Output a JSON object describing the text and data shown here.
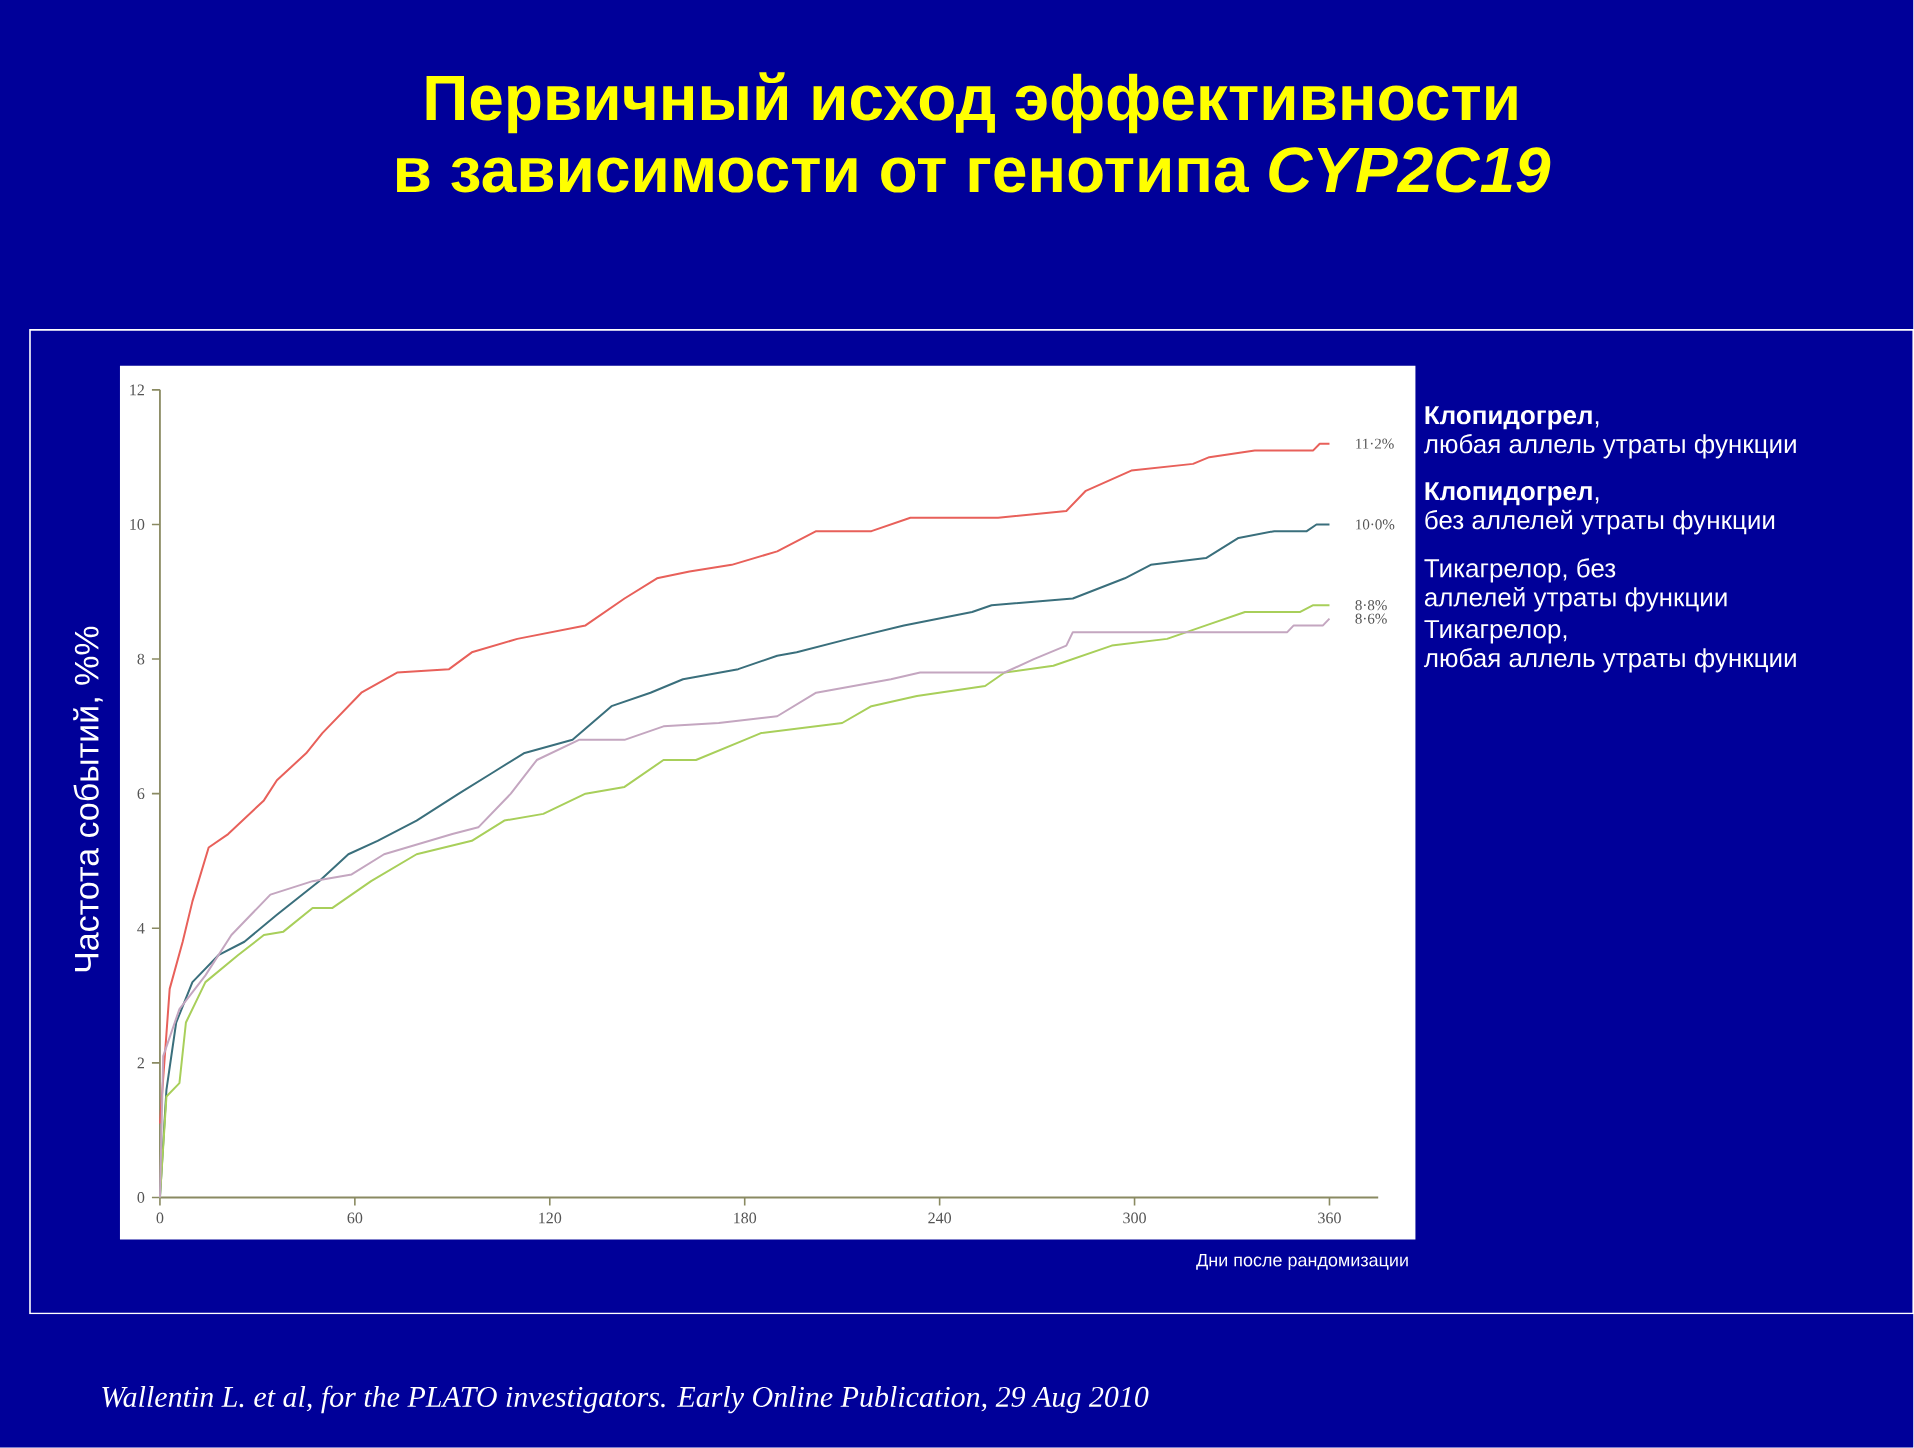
{
  "chart_data": {
    "type": "line",
    "title": "Первичный исход эффективности в зависимости от генотипа *CYP2C19*",
    "xlabel": "Дни после рандомизации",
    "ylabel": "Частота событий, %%",
    "xlim": [
      0,
      375
    ],
    "ylim": [
      0,
      12
    ],
    "xticks": [
      0,
      60,
      120,
      180,
      240,
      300,
      360
    ],
    "yticks": [
      0,
      2,
      4,
      6,
      8,
      10,
      12
    ],
    "marker": "none",
    "series": [
      {
        "name": "**Клопидогрел**, любая аллель утраты функции",
        "color": "#e8605a",
        "x": [
          0,
          3,
          7,
          10,
          15,
          21,
          32,
          36,
          45,
          50,
          56,
          62,
          73,
          89,
          96,
          110,
          131,
          143,
          153,
          163,
          176,
          190,
          194,
          202,
          219,
          231,
          258,
          279,
          285,
          299,
          318,
          323,
          337,
          355,
          357,
          360
        ],
        "values": [
          1.1,
          3.1,
          3.8,
          4.4,
          5.2,
          5.4,
          5.9,
          6.2,
          6.6,
          6.9,
          7.2,
          7.5,
          7.8,
          7.85,
          8.1,
          8.3,
          8.5,
          8.9,
          9.2,
          9.3,
          9.4,
          9.6,
          9.7,
          9.9,
          9.9,
          10.1,
          10.1,
          10.2,
          10.5,
          10.8,
          10.9,
          11.0,
          11.1,
          11.1,
          11.2,
          11.2
        ]
      },
      {
        "name": "**Клопидогрел**, без аллелей утраты функции",
        "color": "#3a6f7c",
        "x": [
          0,
          2,
          5,
          10,
          18,
          26,
          36,
          49,
          58,
          67,
          79,
          92,
          102,
          112,
          127,
          139,
          151,
          161,
          178,
          190,
          196,
          212,
          229,
          250,
          256,
          281,
          297,
          305,
          322,
          332,
          343,
          353,
          356,
          360
        ],
        "values": [
          0,
          1.6,
          2.6,
          3.2,
          3.6,
          3.8,
          4.2,
          4.7,
          5.1,
          5.3,
          5.6,
          6.0,
          6.3,
          6.6,
          6.8,
          7.3,
          7.5,
          7.7,
          7.85,
          8.05,
          8.1,
          8.3,
          8.5,
          8.7,
          8.8,
          8.9,
          9.2,
          9.4,
          9.5,
          9.8,
          9.9,
          9.9,
          10.0,
          10.0
        ]
      },
      {
        "name": "Тикагрелор, без аллелей утраты функции",
        "color": "#a8cf5a",
        "x": [
          0,
          2,
          6,
          8,
          14,
          24,
          32,
          38,
          47,
          53,
          65,
          79,
          96,
          106,
          118,
          131,
          143,
          155,
          165,
          180,
          185,
          210,
          219,
          233,
          254,
          260,
          275,
          293,
          310,
          322,
          334,
          351,
          355,
          360
        ],
        "values": [
          0,
          1.5,
          1.7,
          2.6,
          3.2,
          3.6,
          3.9,
          3.95,
          4.3,
          4.3,
          4.7,
          5.1,
          5.3,
          5.6,
          5.7,
          6.0,
          6.1,
          6.5,
          6.5,
          6.8,
          6.9,
          7.05,
          7.3,
          7.45,
          7.6,
          7.8,
          7.9,
          8.2,
          8.3,
          8.5,
          8.7,
          8.7,
          8.8,
          8.8
        ]
      },
      {
        "name": "Тикагрелор, любая аллель утраты функции",
        "color": "#c4a6c0",
        "x": [
          0,
          1,
          6,
          14,
          22,
          34,
          47,
          59,
          69,
          90,
          98,
          108,
          116,
          129,
          143,
          155,
          172,
          190,
          202,
          225,
          234,
          260,
          269,
          279,
          281,
          347,
          349,
          358,
          360
        ],
        "values": [
          0,
          2.1,
          2.8,
          3.3,
          3.9,
          4.5,
          4.7,
          4.8,
          5.1,
          5.4,
          5.5,
          6.0,
          6.5,
          6.8,
          6.8,
          7.0,
          7.05,
          7.15,
          7.5,
          7.7,
          7.8,
          7.8,
          8.0,
          8.2,
          8.4,
          8.4,
          8.5,
          8.5,
          8.6
        ]
      }
    ],
    "annotations": [
      "11·2%",
      "10·0%",
      "8·8%",
      "8·6%",
      "*Wallentin L. et al, for the PLATO investigators. Early Online Publication, 29 Aug 2010*"
    ]
  }
}
